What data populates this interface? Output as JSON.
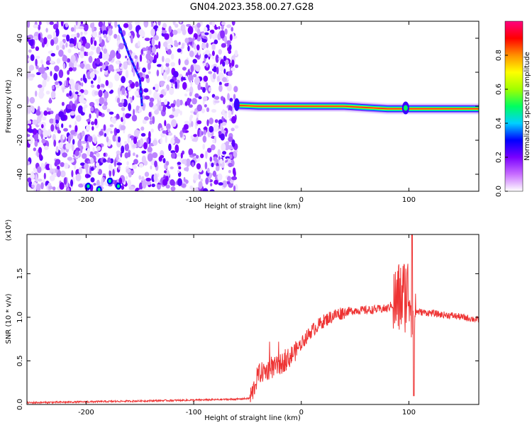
{
  "title": "GN04.2023.358.00.27.G28",
  "chart_data": [
    {
      "type": "heatmap",
      "xlabel": "Height of straight line (km)",
      "ylabel": "Frequency (Hz)",
      "xlim": [
        -255,
        165
      ],
      "ylim": [
        -50,
        50
      ],
      "x_ticks": [
        -200,
        -100,
        0,
        100
      ],
      "y_ticks": [
        -40,
        -20,
        0,
        20,
        40
      ],
      "colorbar": {
        "label": "Normalized spectral amplitude",
        "range": [
          0.0,
          1.0
        ],
        "ticks": [
          "0.0",
          "0.2",
          "0.4",
          "0.6",
          "0.8"
        ],
        "colors": [
          "#ffffff",
          "#c86dff",
          "#7a00ff",
          "#0000ff",
          "#00d0ff",
          "#00ff60",
          "#a0ff00",
          "#ffff00",
          "#ff9000",
          "#ff0000",
          "#ff0080"
        ]
      },
      "noise_region_x": [
        -255,
        -60
      ],
      "tonal_line": [
        {
          "x": -60,
          "f": 0.5
        },
        {
          "x": -40,
          "f": 0.0
        },
        {
          "x": -20,
          "f": 0.0
        },
        {
          "x": 0,
          "f": 0.0
        },
        {
          "x": 40,
          "f": 0.0
        },
        {
          "x": 80,
          "f": -1.5
        },
        {
          "x": 100,
          "f": -1.5
        },
        {
          "x": 165,
          "f": -1.5
        }
      ],
      "streak": [
        {
          "x": -170,
          "f": 48
        },
        {
          "x": -160,
          "f": 30
        },
        {
          "x": -150,
          "f": 16
        },
        {
          "x": -148,
          "f": 0
        }
      ]
    },
    {
      "type": "line",
      "xlabel": "Height of straight line (km)",
      "ylabel": "SNR (10 * v/v)",
      "y_exponent": "(x10⁴)",
      "xlim": [
        -255,
        165
      ],
      "ylim": [
        0.0,
        1.95
      ],
      "x_ticks": [
        -200,
        -100,
        0,
        100
      ],
      "y_ticks": [
        "0.0",
        "0.5",
        "1.0",
        "1.5"
      ],
      "color": "#ee3333",
      "series": [
        {
          "x": [
            -255,
            -200,
            -150,
            -100,
            -60,
            -48,
            -45,
            -40,
            -30,
            -20,
            -10,
            0,
            10,
            20,
            30,
            40,
            50,
            60,
            70,
            80,
            85,
            90,
            95,
            100,
            103,
            106,
            110,
            120,
            130,
            140,
            150,
            165
          ],
          "y": [
            0.02,
            0.03,
            0.04,
            0.05,
            0.06,
            0.07,
            0.15,
            0.35,
            0.4,
            0.45,
            0.55,
            0.7,
            0.85,
            0.95,
            1.02,
            1.06,
            1.08,
            1.08,
            1.09,
            1.1,
            1.15,
            1.2,
            1.25,
            1.3,
            1.1,
            1.07,
            1.06,
            1.05,
            1.03,
            1.02,
            1.0,
            0.97
          ]
        }
      ]
    }
  ]
}
